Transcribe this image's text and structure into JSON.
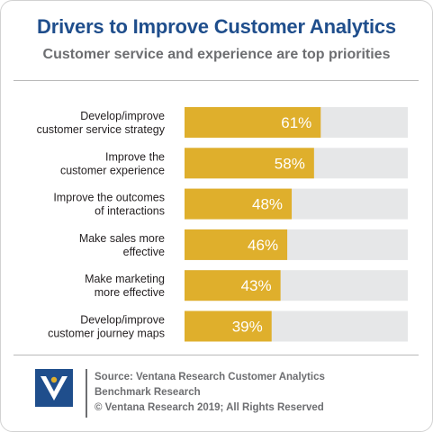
{
  "chart_data": {
    "type": "bar",
    "orientation": "horizontal",
    "title": "Drivers to Improve Customer Analytics",
    "subtitle": "Customer service and experience are top priorities",
    "categories": [
      [
        "Develop/improve",
        "customer service strategy"
      ],
      [
        "Improve the",
        "customer experience"
      ],
      [
        "Improve the outcomes",
        "of interactions"
      ],
      [
        "Make sales more",
        "effective"
      ],
      [
        "Make marketing",
        "more effective"
      ],
      [
        "Develop/improve",
        "customer journey maps"
      ]
    ],
    "values": [
      61,
      58,
      48,
      46,
      43,
      39
    ],
    "value_labels": [
      "61%",
      "58%",
      "48%",
      "46%",
      "43%",
      "39%"
    ],
    "xlim": [
      0,
      100
    ],
    "grid": false,
    "colors": {
      "bar": "#dfaf2c",
      "track": "#e6e7e8"
    }
  },
  "footer": {
    "source_line1": "Source: Ventana Research Customer Analytics",
    "source_line2": "Benchmark Research",
    "copyright": "© Ventana Research 2019; All Rights Reserved"
  },
  "logo": {
    "icon": "ventana-logo-icon",
    "color": "#1f4e8c"
  }
}
